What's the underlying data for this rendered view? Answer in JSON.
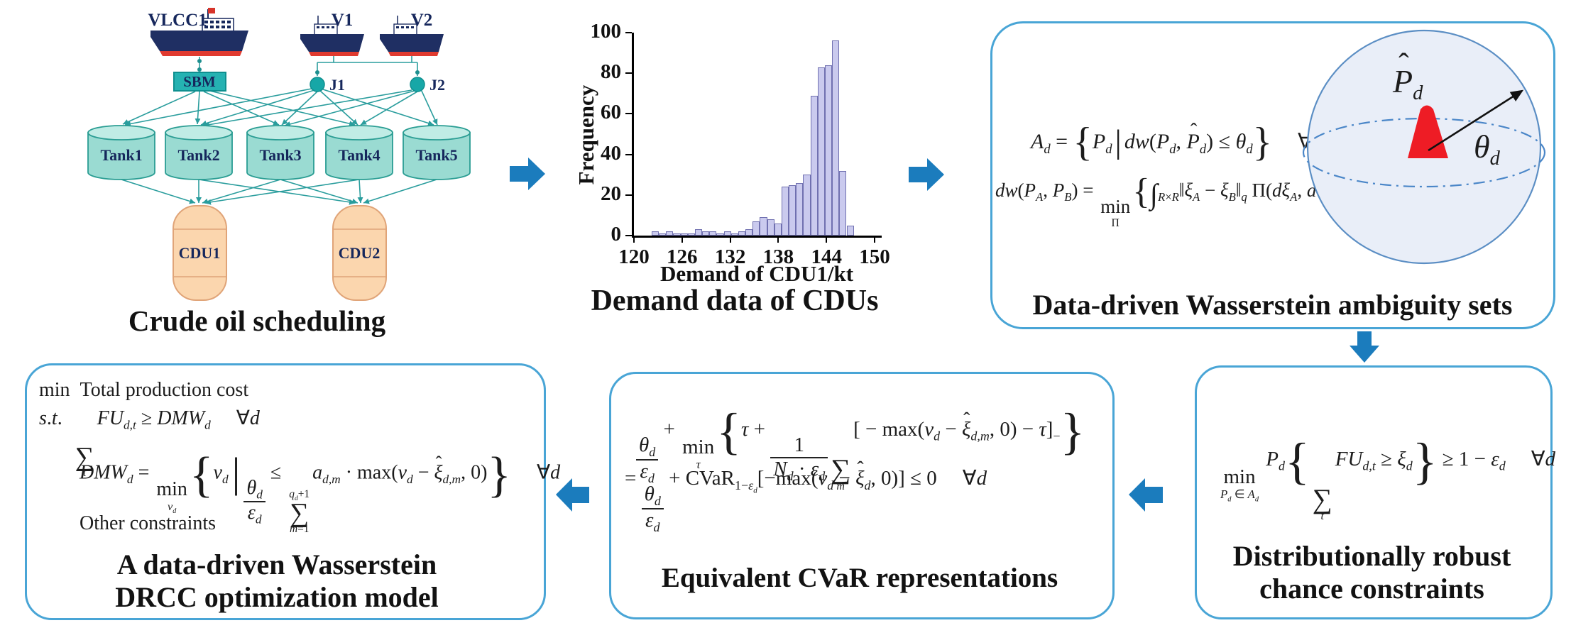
{
  "network": {
    "ships": {
      "vlcc": "VLCC1",
      "v1": "V1",
      "v2": "V2"
    },
    "sbm": "SBM",
    "j1": "J1",
    "j2": "J2",
    "tanks": [
      "Tank1",
      "Tank2",
      "Tank3",
      "Tank4",
      "Tank5"
    ],
    "cdus": [
      "CDU1",
      "CDU2"
    ],
    "caption": "Crude oil scheduling"
  },
  "chart_data": {
    "type": "bar",
    "title": "Demand data of CDUs",
    "xlabel": "Demand of CDU1/kt",
    "ylabel": "Frequency",
    "xlim": [
      120,
      150
    ],
    "ylim": [
      0,
      100
    ],
    "x_ticks": [
      120,
      126,
      132,
      138,
      144,
      150
    ],
    "y_ticks": [
      0,
      20,
      40,
      60,
      80,
      100
    ],
    "grid": false,
    "bin_width": 0.9,
    "bin_start": [
      122.2,
      123.1,
      124.0,
      124.9,
      125.8,
      126.7,
      127.6,
      128.5,
      129.4,
      130.3,
      131.2,
      132.1,
      133.0,
      133.9,
      134.8,
      135.7,
      136.6,
      137.5,
      138.4,
      139.3,
      140.2,
      141.1,
      142.0,
      142.9,
      143.8,
      144.7,
      145.6,
      146.5
    ],
    "values": [
      2,
      1,
      2,
      1,
      1,
      1,
      3,
      2,
      2,
      1,
      2,
      1,
      2,
      3,
      7,
      9,
      8,
      6,
      24,
      25,
      26,
      30,
      69,
      83,
      84,
      96,
      32,
      5
    ],
    "bar_color": "#cacaee",
    "bar_edge": "#7070b0"
  },
  "ambiguity": {
    "eq1": "<i>A</i><sub><i>d</i></sub> = <span class='bb'>{</span><i>P</i><sub><i>d</i></sub><span class='vb'>|</span><i>dw</i>(<i>P</i><sub><i>d</i></sub>, <span class='hat'><span class='hm'>ˆ</span><i>P</i></span><sub><i>d</i></sub>) ≤ <i>θ</i><sub><i>d</i></sub><span class='bb'>}</span><span class='gap'></span>∀<i>d</i>",
    "eq2": "<i>dw</i>(<i>P</i><sub><i>A</i></sub>, <i>P</i><sub><i>B</i></sub>) = <span class='op'>min<span class='ub'>Π</span></span><span class='bb'>{</span><span class='int'>∫</span><sub><i>R</i>×<i>R</i></sub>‖<i>ξ</i><sub><i>A</i></sub> − <i>ξ</i><sub><i>B</i></sub>‖<sub><i>q</i></sub> Π(<i>dξ</i><sub><i>A</i></sub>, <i>dξ</i><sub><i>B</i></sub>)<span class='bb'>}</span>",
    "sphere_center_label": "<span class='hat'><span class='hm'>ˆ</span><i>P</i></span><sub><i>d</i></sub>",
    "sphere_radius_label": "<i>θ</i><sub><i>d</i></sub>",
    "caption": "Data-driven Wasserstein ambiguity sets"
  },
  "drcc": {
    "eq": "<span class='op'>min<span class='ub'><i>P<sub>d</sub></i> ∈ <i>A<sub>d</sub></i></span></span> <i>P</i><sub><i>d</i></sub><span class='bb2'>{</span><span class='sum'><span class='sl'>&nbsp;</span><span class='sg'>∑</span><span class='sl'><i>t</i></span></span><i>FU</i><sub><i>d</i>,<i>t</i></sub> ≥ <i>ξ</i><sub><i>d</i></sub><span class='bb2'>}</span> ≥ 1 − <i>ε</i><sub><i>d</i></sub><span class='gap'></span>∀<i>d</i>",
    "caption_line1": "Distributionally robust",
    "caption_line2": "chance constraints"
  },
  "cvar": {
    "eq1": "<span class='fr'><span class='nu'><i>θ</i><sub><i>d</i></sub></span><span class='de'><i>ε</i><sub><i>d</i></sub></span></span> + <span class='op'>min<span class='ub'><i>τ</i></span></span><span class='bb2'>{</span><i>τ</i> + <span class='fr'><span class='nu'>1</span><span class='de'><i>N</i><sub><i>d</i></sub> · <i>ε</i><sub><i>d</i></sub></span></span><span class='sum'><span class='sl'>&nbsp;</span><span class='sg'>∑</span><span class='sl'><i>m</i></span></span>[ − max(<i>v</i><sub><i>d</i></sub> − <span class='hat'><span class='hm'>ˆ</span><i>ξ</i></span><sub><i>d</i>,<i>m</i></sub>, 0) − <i>τ</i>]<sub>−</sub><span class='bb2'>}</span>",
    "eq2": "= <span class='fr'><span class='nu'><i>θ</i><sub><i>d</i></sub></span><span class='de'><i>ε</i><sub><i>d</i></sub></span></span> + CVaR<sub>1−<i>ε<sub>d</sub></i></sub>[−max(<i>v</i><sub><i>d</i></sub> − <span class='hat'><span class='hm'>ˆ</span><i>ξ</i></span><sub><i>d</i></sub>, 0)] ≤ 0<span class='gap'></span>∀<i>d</i>",
    "caption": "Equivalent CVaR representations"
  },
  "model": {
    "l1": "min&nbsp;&nbsp;Total production cost",
    "l2": "<i>s</i>.<i>t</i>.&nbsp;&nbsp;<span class='sum'><span class='sl'>&nbsp;</span><span class='sg'>∑</span><span class='sl'><i>t</i></span></span><i>FU</i><sub><i>d</i>,<i>t</i></sub> ≥ <i>DMW</i><sub><i>d</i></sub><span class='gap'></span>∀<i>d</i>",
    "l3": "<i>DMW</i><sub><i>d</i></sub> = <span class='op'>min<span class='ub'><i>v<sub>d</sub></i></span></span><span class='bb2'>{</span><i>v</i><sub><i>d</i></sub><span class='vb2'>|</span><span class='fr'><span class='nu'><i>θ</i><sub><i>d</i></sub></span><span class='de'><i>ε</i><sub><i>d</i></sub></span></span> ≤ <span class='sum'><span class='sl'><i>q<sub>d</sub></i>+1</span><span class='sg'>∑</span><span class='sl'><i>m</i>=1</span></span><i>a</i><sub><i>d</i>,<i>m</i></sub> · max(<i>v</i><sub><i>d</i></sub> − <span class='hat'><span class='hm'>ˆ</span><i>ξ</i></span><sub><i>d</i>,<i>m</i></sub>, 0)<span class='bb2'>}</span><span class='gap'></span>∀<i>d</i>",
    "l4": "Other constraints",
    "caption_line1": "A data-driven Wasserstein",
    "caption_line2": "DRCC optimization model"
  },
  "colors": {
    "box_border": "#49a5d6",
    "flow_arrow": "#1b7cbd",
    "edge_teal": "#2a9d9d",
    "sbm_fill": "#25b2b2",
    "tank_fill": "#9adbd2",
    "cdu_fill": "#fbd6ae",
    "navy": "#16275c",
    "hull_red": "#e03a2f",
    "sphere_fill": "#e9eef8",
    "sphere_stroke": "#5b8ec4",
    "cone_red": "#ee1c25"
  }
}
